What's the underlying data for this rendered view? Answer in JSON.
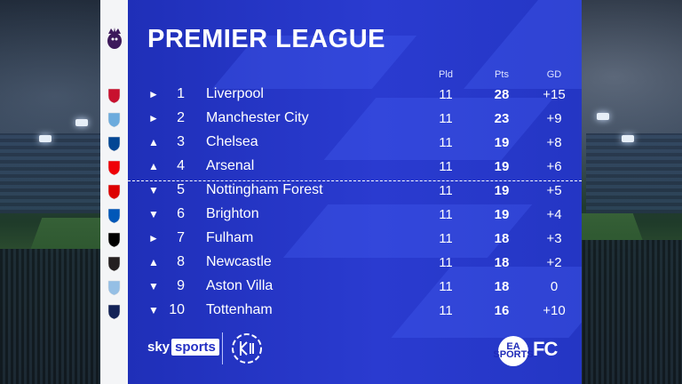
{
  "title": "PREMIER LEAGUE",
  "columns": {
    "pld": "Pld",
    "pts": "Pts",
    "gd": "GD"
  },
  "rows": [
    {
      "arrow": "►",
      "pos": "1",
      "team": "Liverpool",
      "pld": "11",
      "pts": "28",
      "gd": "+15",
      "crest": "liverpool-crest-icon"
    },
    {
      "arrow": "►",
      "pos": "2",
      "team": "Manchester City",
      "pld": "11",
      "pts": "23",
      "gd": "+9",
      "crest": "man-city-crest-icon"
    },
    {
      "arrow": "▲",
      "pos": "3",
      "team": "Chelsea",
      "pld": "11",
      "pts": "19",
      "gd": "+8",
      "crest": "chelsea-crest-icon"
    },
    {
      "arrow": "▲",
      "pos": "4",
      "team": "Arsenal",
      "pld": "11",
      "pts": "19",
      "gd": "+6",
      "crest": "arsenal-crest-icon"
    },
    {
      "arrow": "▼",
      "pos": "5",
      "team": "Nottingham Forest",
      "pld": "11",
      "pts": "19",
      "gd": "+5",
      "crest": "nottingham-forest-crest-icon"
    },
    {
      "arrow": "▼",
      "pos": "6",
      "team": "Brighton",
      "pld": "11",
      "pts": "19",
      "gd": "+4",
      "crest": "brighton-crest-icon"
    },
    {
      "arrow": "►",
      "pos": "7",
      "team": "Fulham",
      "pld": "11",
      "pts": "18",
      "gd": "+3",
      "crest": "fulham-crest-icon"
    },
    {
      "arrow": "▲",
      "pos": "8",
      "team": "Newcastle",
      "pld": "11",
      "pts": "18",
      "gd": "+2",
      "crest": "newcastle-crest-icon"
    },
    {
      "arrow": "▼",
      "pos": "9",
      "team": "Aston Villa",
      "pld": "11",
      "pts": "18",
      "gd": "0",
      "crest": "aston-villa-crest-icon"
    },
    {
      "arrow": "▼",
      "pos": "10",
      "team": "Tottenham",
      "pld": "11",
      "pts": "16",
      "gd": "+10",
      "crest": "tottenham-crest-icon"
    }
  ],
  "footer": {
    "sky": "sky",
    "sports": "sports",
    "ea": "EA SPORTS",
    "fc": "FC"
  },
  "colors": {
    "panel": "#2a3bd0",
    "crest_strip": "#f4f5f7",
    "text": "#ffffff"
  }
}
